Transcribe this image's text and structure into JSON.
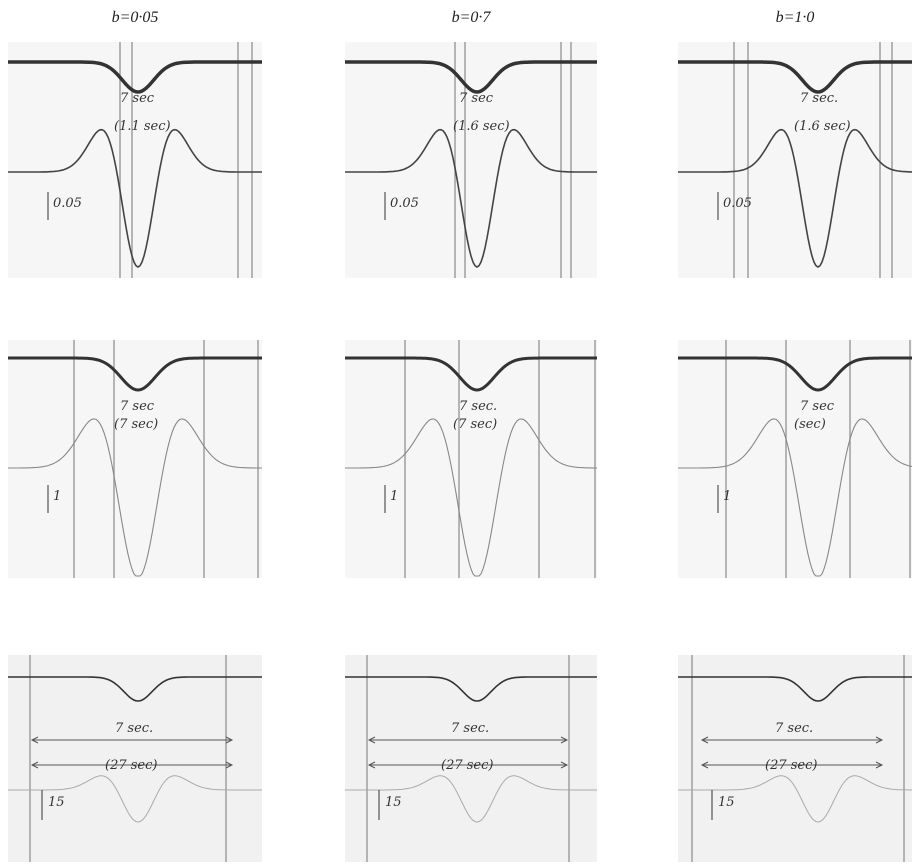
{
  "columns": [
    {
      "header": "b=0·05",
      "panels": [
        {
          "annotations": [
            "7 sec",
            "(1.1 sec)",
            "0.05"
          ]
        },
        {
          "annotations": [
            "7 sec",
            "(7 sec)",
            "1"
          ]
        },
        {
          "annotations": [
            "7 sec.",
            "(27 sec)",
            "15"
          ]
        }
      ]
    },
    {
      "header": "b=0·7",
      "panels": [
        {
          "annotations": [
            "7 sec",
            "(1.6 sec)",
            "0.05"
          ]
        },
        {
          "annotations": [
            "7 sec.",
            "(7 sec)",
            "1"
          ]
        },
        {
          "annotations": [
            "7 sec.",
            "(27 sec)",
            "15"
          ]
        }
      ]
    },
    {
      "header": "b=1·0",
      "panels": [
        {
          "annotations": [
            "7 sec.",
            "(1.6 sec)",
            "0.05"
          ]
        },
        {
          "annotations": [
            "7 sec",
            "(sec)",
            "1"
          ]
        },
        {
          "annotations": [
            "7 sec.",
            "(27 sec)",
            "15"
          ]
        }
      ]
    }
  ]
}
